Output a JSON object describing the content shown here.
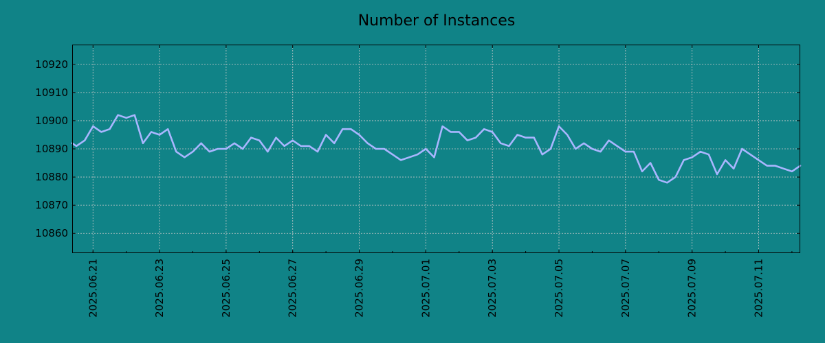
{
  "chart_data": {
    "type": "line",
    "title": "Number of Instances",
    "xlabel": "",
    "ylabel": "",
    "ylim": [
      10853,
      10927
    ],
    "xlim": [
      "2025-06-20T09:00",
      "2025-07-12T06:00"
    ],
    "y_ticks": [
      10860,
      10870,
      10880,
      10890,
      10900,
      10910,
      10920
    ],
    "x_ticks": [
      "2025.06.21",
      "2025.06.23",
      "2025.06.25",
      "2025.06.27",
      "2025.06.29",
      "2025.07.01",
      "2025.07.03",
      "2025.07.05",
      "2025.07.07",
      "2025.07.09",
      "2025.07.11"
    ],
    "grid": true,
    "colors": {
      "background": "#108387",
      "line": "#a9b6ff",
      "grid": "#c8c8c8",
      "axes": "#000000"
    },
    "series": [
      {
        "x": [
          "2025-06-20T09:00",
          "2025-06-20T12:00",
          "2025-06-20T18:00",
          "2025-06-21T00:00",
          "2025-06-21T06:00",
          "2025-06-21T12:00",
          "2025-06-21T18:00",
          "2025-06-22T00:00",
          "2025-06-22T06:00",
          "2025-06-22T12:00",
          "2025-06-22T18:00",
          "2025-06-23T00:00",
          "2025-06-23T06:00",
          "2025-06-23T12:00",
          "2025-06-23T18:00",
          "2025-06-24T00:00",
          "2025-06-24T06:00",
          "2025-06-24T12:00",
          "2025-06-24T18:00",
          "2025-06-25T00:00",
          "2025-06-25T06:00",
          "2025-06-25T12:00",
          "2025-06-25T18:00",
          "2025-06-26T00:00",
          "2025-06-26T06:00",
          "2025-06-26T12:00",
          "2025-06-26T18:00",
          "2025-06-27T00:00",
          "2025-06-27T06:00",
          "2025-06-27T12:00",
          "2025-06-27T18:00",
          "2025-06-28T00:00",
          "2025-06-28T06:00",
          "2025-06-28T12:00",
          "2025-06-28T18:00",
          "2025-06-29T00:00",
          "2025-06-29T06:00",
          "2025-06-29T12:00",
          "2025-06-29T18:00",
          "2025-06-30T00:00",
          "2025-06-30T06:00",
          "2025-06-30T12:00",
          "2025-06-30T18:00",
          "2025-07-01T00:00",
          "2025-07-01T06:00",
          "2025-07-01T12:00",
          "2025-07-01T18:00",
          "2025-07-02T00:00",
          "2025-07-02T06:00",
          "2025-07-02T12:00",
          "2025-07-02T18:00",
          "2025-07-03T00:00",
          "2025-07-03T06:00",
          "2025-07-03T12:00",
          "2025-07-03T18:00",
          "2025-07-04T00:00",
          "2025-07-04T06:00",
          "2025-07-04T12:00",
          "2025-07-04T18:00",
          "2025-07-05T00:00",
          "2025-07-05T06:00",
          "2025-07-05T12:00",
          "2025-07-05T18:00",
          "2025-07-06T00:00",
          "2025-07-06T06:00",
          "2025-07-06T12:00",
          "2025-07-06T18:00",
          "2025-07-07T00:00",
          "2025-07-07T06:00",
          "2025-07-07T12:00",
          "2025-07-07T18:00",
          "2025-07-08T00:00",
          "2025-07-08T06:00",
          "2025-07-08T12:00",
          "2025-07-08T18:00",
          "2025-07-09T00:00",
          "2025-07-09T06:00",
          "2025-07-09T12:00",
          "2025-07-09T18:00",
          "2025-07-10T00:00",
          "2025-07-10T06:00",
          "2025-07-10T12:00",
          "2025-07-10T18:00",
          "2025-07-11T00:00",
          "2025-07-11T06:00",
          "2025-07-11T12:00",
          "2025-07-11T18:00",
          "2025-07-12T00:00",
          "2025-07-12T06:00"
        ],
        "values": [
          10892,
          10891,
          10893,
          10898,
          10896,
          10897,
          10902,
          10901,
          10902,
          10892,
          10896,
          10895,
          10897,
          10889,
          10887,
          10889,
          10892,
          10889,
          10890,
          10890,
          10892,
          10890,
          10894,
          10893,
          10889,
          10894,
          10891,
          10893,
          10891,
          10891,
          10889,
          10895,
          10892,
          10897,
          10897,
          10895,
          10892,
          10890,
          10890,
          10888,
          10886,
          10887,
          10888,
          10890,
          10887,
          10898,
          10896,
          10896,
          10893,
          10894,
          10897,
          10896,
          10892,
          10891,
          10895,
          10894,
          10894,
          10888,
          10890,
          10898,
          10895,
          10890,
          10892,
          10890,
          10889,
          10893,
          10891,
          10889,
          10889,
          10882,
          10885,
          10879,
          10878,
          10880,
          10886,
          10887,
          10889,
          10888,
          10881,
          10886,
          10883,
          10890,
          10888,
          10886,
          10884,
          10884,
          10883,
          10882,
          10884
        ]
      }
    ]
  }
}
